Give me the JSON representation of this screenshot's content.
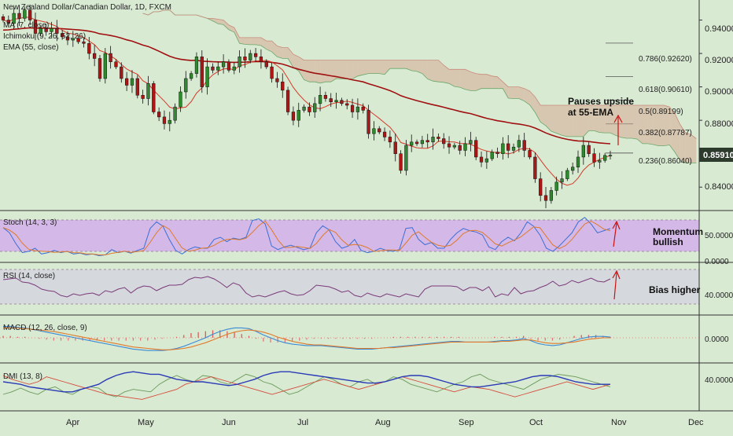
{
  "chart_data": [
    {
      "type": "candlestick",
      "title": "New Zealand Dollar/Canadian Dollar, 1D, FXCM",
      "indicators": [
        "MA (7, close)",
        "Ichimoku (9, 26, 52, 26)",
        "EMA (55, close)"
      ],
      "x_ticks": [
        "Apr",
        "May",
        "Jun",
        "Jul",
        "Aug",
        "Sep",
        "Oct",
        "Nov",
        "Dec"
      ],
      "y_ticks": [
        "0.94000",
        "0.92000",
        "0.90000",
        "0.88000",
        "0.84000"
      ],
      "ylim": [
        0.826,
        0.952
      ],
      "last_price": "0.85910",
      "fib_levels": [
        {
          "label": "0.786(0.92620)",
          "value": 0.9262
        },
        {
          "label": "0.618(0.90610)",
          "value": 0.9061
        },
        {
          "label": "0.5(0.89199)",
          "value": 0.89199
        },
        {
          "label": "0.382(0.87787)",
          "value": 0.87787
        },
        {
          "label": "0.236(0.86040)",
          "value": 0.8604
        }
      ],
      "annotations": [
        "Pauses upside",
        "at 55-EMA"
      ],
      "closes": [
        0.94,
        0.938,
        0.944,
        0.941,
        0.946,
        0.94,
        0.932,
        0.935,
        0.933,
        0.935,
        0.932,
        0.93,
        0.928,
        0.929,
        0.927,
        0.926,
        0.92,
        0.917,
        0.905,
        0.92,
        0.915,
        0.912,
        0.905,
        0.901,
        0.905,
        0.895,
        0.893,
        0.902,
        0.885,
        0.882,
        0.878,
        0.88,
        0.888,
        0.897,
        0.905,
        0.908,
        0.918,
        0.9,
        0.912,
        0.91,
        0.912,
        0.915,
        0.91,
        0.912,
        0.918,
        0.916,
        0.92,
        0.918,
        0.915,
        0.912,
        0.905,
        0.903,
        0.898,
        0.885,
        0.88,
        0.886,
        0.888,
        0.885,
        0.89,
        0.895,
        0.893,
        0.891,
        0.892,
        0.89,
        0.889,
        0.885,
        0.888,
        0.886,
        0.872,
        0.875,
        0.873,
        0.87,
        0.867,
        0.86,
        0.85,
        0.865,
        0.867,
        0.866,
        0.868,
        0.867,
        0.87,
        0.869,
        0.866,
        0.864,
        0.865,
        0.862,
        0.866,
        0.868,
        0.858,
        0.855,
        0.857,
        0.861,
        0.86,
        0.866,
        0.862,
        0.864,
        0.868,
        0.862,
        0.858,
        0.845,
        0.835,
        0.832,
        0.838,
        0.843,
        0.845,
        0.85,
        0.852,
        0.858,
        0.865,
        0.86,
        0.855,
        0.856,
        0.859,
        0.8591
      ]
    },
    {
      "type": "line",
      "title": "Stoch (14, 3, 3)",
      "y_ticks": [
        "50.0000",
        "0.0000"
      ],
      "annotation": "Momentum bullish",
      "values": [
        72,
        60,
        35,
        15,
        18,
        25,
        12,
        15,
        20,
        15,
        18,
        12,
        14,
        10,
        12,
        8,
        10,
        22,
        15,
        18,
        14,
        20,
        25,
        70,
        85,
        75,
        45,
        20,
        12,
        22,
        28,
        25,
        25,
        45,
        50,
        40,
        48,
        45,
        50,
        88,
        92,
        80,
        30,
        22,
        28,
        32,
        27,
        22,
        25,
        60,
        76,
        67,
        40,
        25,
        30,
        45,
        20,
        15,
        18,
        25,
        20,
        18,
        22,
        70,
        72,
        45,
        33,
        38,
        25,
        25,
        45,
        60,
        70,
        65,
        62,
        55,
        28,
        22,
        40,
        50,
        42,
        60,
        85,
        75,
        55,
        25,
        18,
        30,
        45,
        60,
        85,
        95,
        80,
        60,
        65,
        70
      ]
    },
    {
      "type": "line",
      "title": "RSI (14, close)",
      "y_ticks": [
        "40.0000"
      ],
      "annotation": "Bias higher",
      "values": [
        62,
        63,
        64,
        59,
        58,
        55,
        50,
        48,
        47,
        42,
        40,
        44,
        42,
        44,
        45,
        42,
        48,
        46,
        50,
        52,
        45,
        51,
        54,
        53,
        48,
        52,
        55,
        55,
        56,
        62,
        65,
        64,
        66,
        63,
        58,
        52,
        58,
        55,
        45,
        40,
        42,
        40,
        43,
        46,
        48,
        44,
        42,
        43,
        48,
        55,
        54,
        53,
        50,
        46,
        48,
        42,
        40,
        45,
        42,
        40,
        44,
        42,
        40,
        44,
        42,
        40,
        50,
        54,
        54,
        54,
        54,
        53,
        48,
        52,
        52,
        48,
        53,
        40,
        44,
        42,
        52,
        44,
        47,
        48,
        52,
        55,
        60,
        54,
        56,
        61,
        58,
        61,
        64,
        60,
        59,
        63
      ]
    },
    {
      "type": "line",
      "title": "MACD (12, 26, close, 9)",
      "y_ticks": [
        "0.0000"
      ],
      "macd": [
        16,
        16,
        15,
        14,
        12,
        10,
        8,
        6,
        4,
        2,
        0,
        -2,
        -4,
        -6,
        -8,
        -10,
        -12,
        -14,
        -16,
        -17,
        -18,
        -18,
        -18,
        -17,
        -15,
        -12,
        -8,
        -4,
        0,
        5,
        9,
        12,
        14,
        14,
        13,
        9,
        4,
        0,
        -4,
        -7,
        -9,
        -10,
        -11,
        -11,
        -11,
        -12,
        -13,
        -14,
        -15,
        -16,
        -16,
        -16,
        -15,
        -14,
        -13,
        -12,
        -11,
        -10,
        -9,
        -8,
        -7,
        -6,
        -5,
        -5,
        -6,
        -6,
        -6,
        -6,
        -5,
        -4,
        -4,
        -3,
        -1,
        -4,
        -8,
        -10,
        -11,
        -10,
        -7,
        -4,
        -1,
        1,
        2,
        2,
        1
      ],
      "signal": [
        14,
        14,
        14,
        13,
        12,
        11,
        10,
        9,
        7,
        5,
        3,
        1,
        -1,
        -3,
        -5,
        -7,
        -9,
        -11,
        -13,
        -14,
        -15,
        -16,
        -17,
        -17,
        -16,
        -15,
        -13,
        -10,
        -7,
        -3,
        1,
        5,
        8,
        10,
        11,
        10,
        8,
        5,
        1,
        -2,
        -5,
        -7,
        -9,
        -10,
        -10,
        -11,
        -12,
        -13,
        -14,
        -15,
        -15,
        -15,
        -15,
        -14,
        -14,
        -13,
        -12,
        -11,
        -10,
        -9,
        -8,
        -7,
        -6,
        -6,
        -6,
        -6,
        -6,
        -6,
        -6,
        -5,
        -5,
        -4,
        -3,
        -3,
        -5,
        -7,
        -8,
        -8,
        -7,
        -6,
        -4,
        -2,
        -1,
        0,
        0
      ]
    },
    {
      "type": "line",
      "title": "DMI (13, 8)",
      "y_ticks": [
        "40.0000"
      ],
      "adx": [
        20,
        19,
        18,
        16,
        15,
        14,
        13,
        12,
        12,
        14,
        16,
        18,
        22,
        25,
        27,
        28,
        27,
        26,
        26,
        24,
        22,
        21,
        20,
        20,
        19,
        18,
        17,
        18,
        20,
        22,
        25,
        27,
        28,
        28,
        27,
        26,
        25,
        24,
        23,
        22,
        21,
        20,
        19,
        19,
        20,
        22,
        24,
        25,
        25,
        24,
        22,
        20,
        18,
        17,
        16,
        16,
        17,
        18,
        19,
        20,
        22,
        24,
        25,
        25,
        24,
        22,
        20,
        19,
        18,
        18,
        18
      ],
      "plus_di": [
        10,
        12,
        15,
        12,
        10,
        14,
        16,
        12,
        10,
        14,
        16,
        15,
        10,
        8,
        12,
        14,
        13,
        12,
        18,
        22,
        25,
        22,
        20,
        25,
        24,
        20,
        18,
        22,
        26,
        24,
        20,
        18,
        14,
        10,
        12,
        16,
        20,
        24,
        22,
        18,
        16,
        20,
        22,
        18,
        20,
        24,
        22,
        18,
        16,
        14,
        12,
        15,
        18,
        20,
        24,
        26,
        22,
        20,
        18,
        16,
        14,
        18,
        22,
        24,
        26,
        25,
        24,
        22,
        20,
        18,
        16
      ],
      "minus_di": [
        25,
        22,
        20,
        18,
        20,
        24,
        22,
        20,
        18,
        16,
        14,
        12,
        10,
        9,
        8,
        7,
        6,
        8,
        10,
        12,
        14,
        18,
        20,
        22,
        24,
        22,
        20,
        18,
        16,
        14,
        12,
        10,
        12,
        14,
        16,
        18,
        20,
        22,
        20,
        18,
        16,
        14,
        16,
        18,
        20,
        22,
        24,
        22,
        20,
        18,
        16,
        14,
        12,
        14,
        16,
        15,
        14,
        12,
        10,
        8,
        10,
        12,
        14,
        16,
        18,
        20,
        18,
        16,
        14,
        16,
        18
      ]
    }
  ]
}
